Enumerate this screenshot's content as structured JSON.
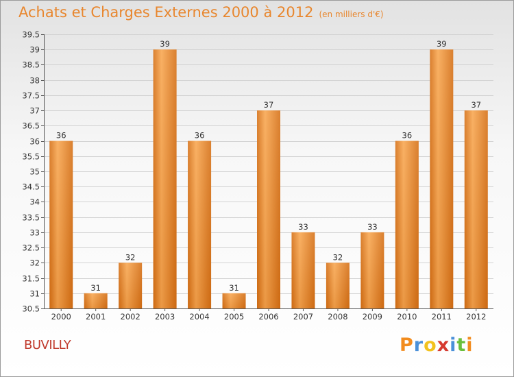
{
  "title": "Achats et Charges Externes 2000 à 2012",
  "unit": "(en milliers d'€)",
  "commune": "BUVILLY",
  "logo": {
    "text": "Proxiti",
    "letters": [
      {
        "ch": "P",
        "color": "#f28c1e"
      },
      {
        "ch": "r",
        "color": "#4a90d9"
      },
      {
        "ch": "o",
        "color": "#f2c21e"
      },
      {
        "ch": "x",
        "color": "#d63a2f"
      },
      {
        "ch": "i",
        "color": "#4a90d9"
      },
      {
        "ch": "t",
        "color": "#6abf3c"
      },
      {
        "ch": "i",
        "color": "#f28c1e"
      }
    ]
  },
  "colors": {
    "bar_light": "#f8a64f",
    "bar_dark": "#d56f14",
    "title": "#e8862d",
    "commune": "#c0392b"
  },
  "chart_data": {
    "type": "bar",
    "categories": [
      "2000",
      "2001",
      "2002",
      "2003",
      "2004",
      "2005",
      "2006",
      "2007",
      "2008",
      "2009",
      "2010",
      "2011",
      "2012"
    ],
    "values": [
      36,
      31,
      32,
      39,
      36,
      31,
      37,
      33,
      32,
      33,
      36,
      39,
      37
    ],
    "ylim": [
      30.5,
      39.5
    ],
    "yticks": [
      "30.5",
      "31",
      "31.5",
      "32",
      "32.5",
      "33",
      "33.5",
      "34",
      "34.5",
      "35",
      "35.5",
      "36",
      "36.5",
      "37",
      "37.5",
      "38",
      "38.5",
      "39",
      "39.5"
    ],
    "grid": true
  }
}
